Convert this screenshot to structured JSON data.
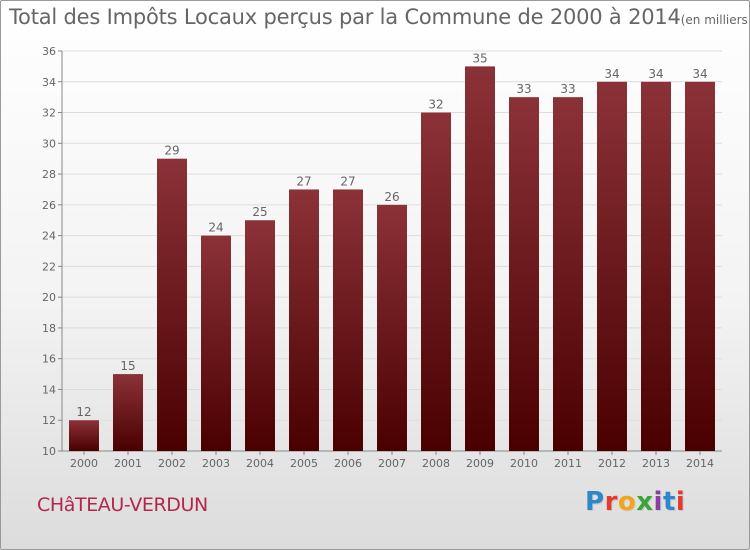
{
  "header": {
    "title": "Total des Impôts Locaux perçus par la Commune de 2000 à 2014",
    "unit": "(en milliers d'€)"
  },
  "commune": "CHâTEAU-VERDUN",
  "logo": {
    "text": "Proxiti",
    "letters": [
      "P",
      "r",
      "o",
      "x",
      "i",
      "t",
      "i"
    ]
  },
  "colors": {
    "bar_top": "#8b3238",
    "bar_bottom": "#4a0000",
    "text": "#666666",
    "commune": "#b5264c"
  },
  "chart_data": {
    "type": "bar",
    "categories": [
      "2000",
      "2001",
      "2002",
      "2003",
      "2004",
      "2005",
      "2006",
      "2007",
      "2008",
      "2009",
      "2010",
      "2011",
      "2012",
      "2013",
      "2014"
    ],
    "values": [
      12,
      15,
      29,
      24,
      25,
      27,
      27,
      26,
      32,
      35,
      33,
      33,
      34,
      34,
      34
    ],
    "data_labels": [
      "12",
      "15",
      "29",
      "24",
      "25",
      "27",
      "27",
      "26",
      "32",
      "35",
      "33",
      "33",
      "34",
      "34",
      "34"
    ],
    "ylim": [
      10,
      36
    ],
    "yticks": [
      10,
      12,
      14,
      16,
      18,
      20,
      22,
      24,
      26,
      28,
      30,
      32,
      34,
      36
    ],
    "grid": true,
    "xlabel": "",
    "ylabel": ""
  }
}
